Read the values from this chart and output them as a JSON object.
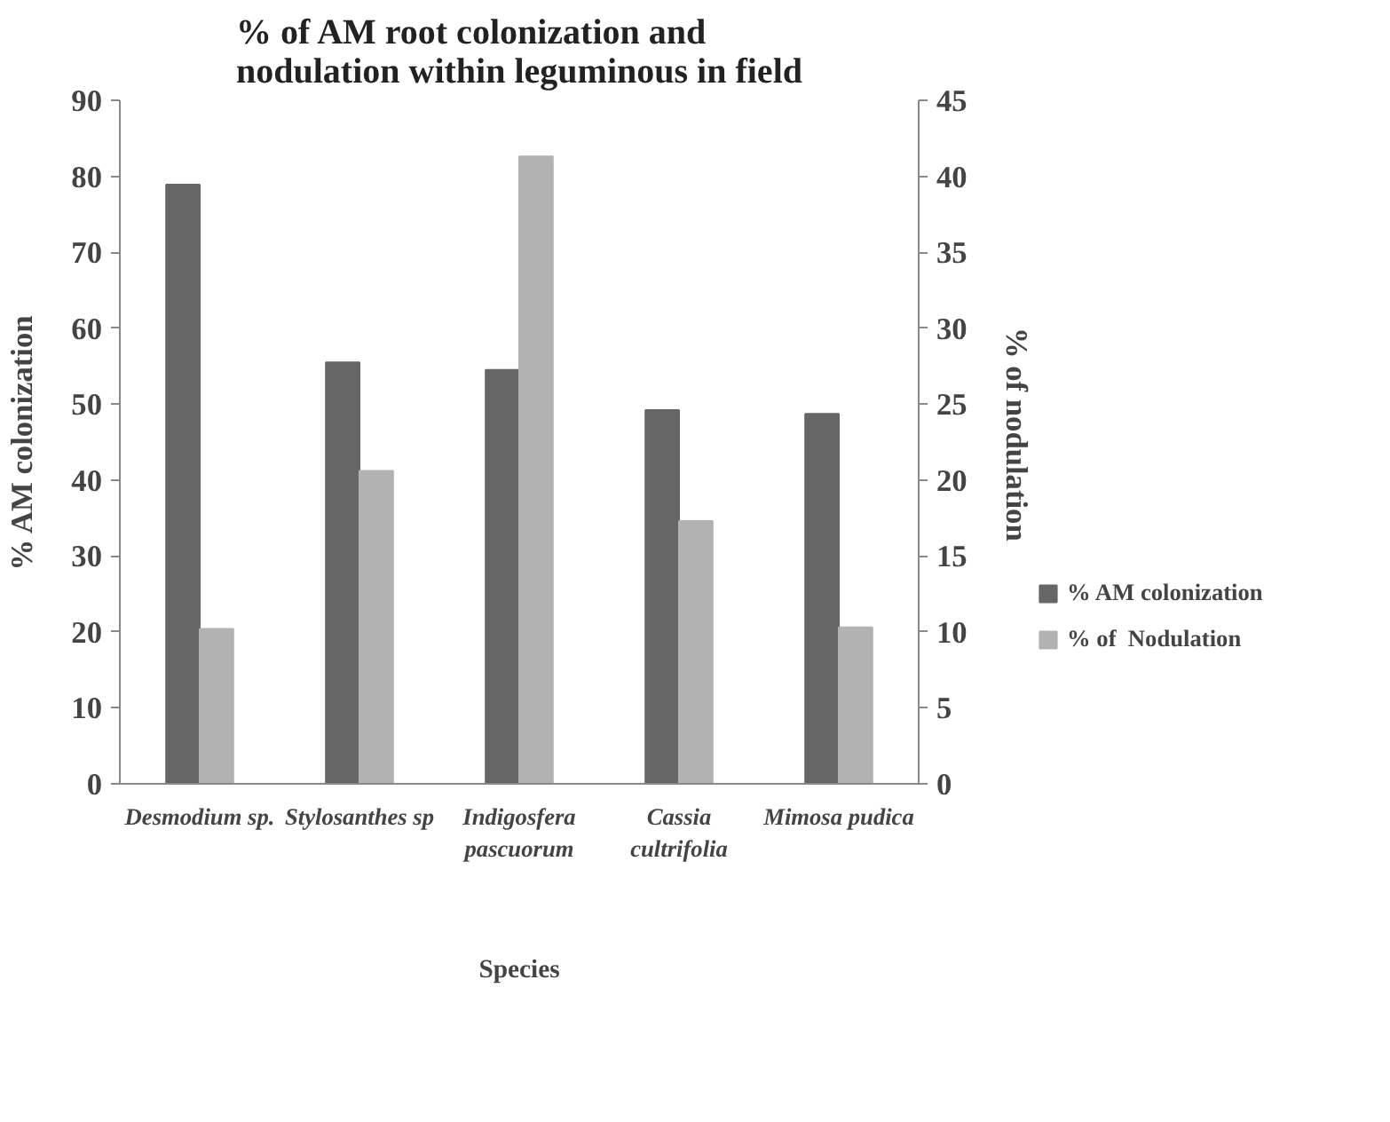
{
  "chart_data": {
    "type": "bar",
    "title": "% of AM root colonization and\nnodulation within leguminous in field",
    "categories": [
      "Desmodium sp.",
      "Stylosanthes sp",
      "Indigosfera\npascuorum",
      "Cassia\ncultrifolia",
      "Mimosa pudica"
    ],
    "series": [
      {
        "name": "% AM colonization",
        "color": "#666666",
        "values": [
          78.9,
          55.5,
          54.5,
          49.2,
          48.7
        ]
      },
      {
        "name": "% of  Nodulation",
        "color": "#b2b2b2",
        "axis": "y2",
        "values": [
          10.2,
          20.6,
          41.3,
          17.3,
          10.3
        ]
      }
    ],
    "xlabel": "Species",
    "ylabel": "% AM colonization",
    "y2label": "%  of  nodulation",
    "ylim": [
      0,
      90
    ],
    "yticks": [
      0,
      10,
      20,
      30,
      40,
      50,
      60,
      70,
      80,
      90
    ],
    "y2lim": [
      0,
      45
    ],
    "y2ticks": [
      0,
      5,
      10,
      15,
      20,
      25,
      30,
      35,
      40,
      45
    ],
    "grid": false,
    "legend": "right"
  }
}
